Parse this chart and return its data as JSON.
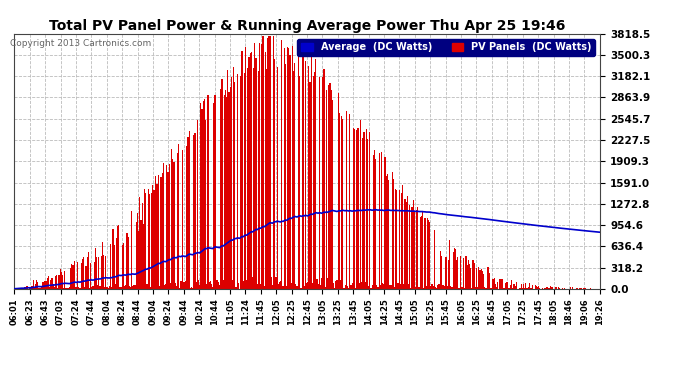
{
  "title": "Total PV Panel Power & Running Average Power Thu Apr 25 19:46",
  "copyright": "Copyright 2013 Cartronics.com",
  "bg_color": "#ffffff",
  "plot_bg_color": "#ffffff",
  "grid_color": "#bbbbbb",
  "bar_color": "#dd0000",
  "avg_color": "#0000cc",
  "yticks": [
    0.0,
    318.2,
    636.4,
    954.6,
    1272.8,
    1591.0,
    1909.3,
    2227.5,
    2545.7,
    2863.9,
    3182.1,
    3500.3,
    3818.5
  ],
  "ymax": 3818.5,
  "xticklabels": [
    "06:01",
    "06:23",
    "06:43",
    "07:03",
    "07:24",
    "07:44",
    "08:04",
    "08:24",
    "08:44",
    "09:04",
    "09:24",
    "09:44",
    "10:24",
    "10:44",
    "11:05",
    "11:24",
    "11:45",
    "12:05",
    "12:25",
    "12:45",
    "13:05",
    "13:25",
    "13:45",
    "14:05",
    "14:25",
    "14:45",
    "15:05",
    "15:25",
    "15:45",
    "16:05",
    "16:25",
    "16:45",
    "17:05",
    "17:25",
    "17:45",
    "18:05",
    "18:46",
    "19:06",
    "19:26"
  ],
  "legend_avg_label": "Average  (DC Watts)",
  "legend_pv_label": "PV Panels  (DC Watts)"
}
